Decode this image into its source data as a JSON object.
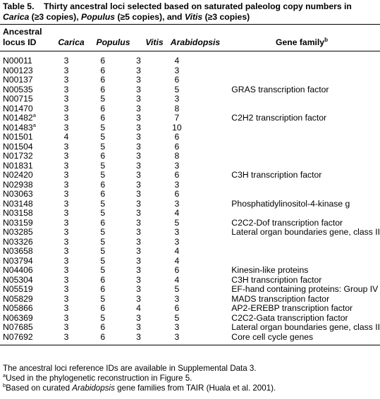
{
  "caption": {
    "table_number": "Table 5.",
    "title_part1": "Thirty ancestral loci selected based on saturated paleolog copy numbers in",
    "genus1": "Carica",
    "note1": "(≥3 copies),",
    "genus2": "Populus",
    "note2": "(≥5 copies), and",
    "genus3": "Vitis",
    "note3": "(≥3 copies)"
  },
  "headers": {
    "locus_line1": "Ancestral",
    "locus_line2": "locus ID",
    "carica": "Carica",
    "populus": "Populus",
    "vitis": "Vitis",
    "arabidopsis": "Arabidopsis",
    "gene_family": "Gene family",
    "gene_family_mark": "b"
  },
  "rows": [
    {
      "id": "N00011",
      "mark": "",
      "carica": "3",
      "populus": "6",
      "vitis": "3",
      "arabidopsis": "4",
      "family": ""
    },
    {
      "id": "N00123",
      "mark": "",
      "carica": "3",
      "populus": "6",
      "vitis": "3",
      "arabidopsis": "3",
      "family": ""
    },
    {
      "id": "N00137",
      "mark": "",
      "carica": "3",
      "populus": "6",
      "vitis": "3",
      "arabidopsis": "6",
      "family": ""
    },
    {
      "id": "N00535",
      "mark": "",
      "carica": "3",
      "populus": "6",
      "vitis": "3",
      "arabidopsis": "5",
      "family": "GRAS transcription factor"
    },
    {
      "id": "N00715",
      "mark": "",
      "carica": "3",
      "populus": "5",
      "vitis": "3",
      "arabidopsis": "3",
      "family": ""
    },
    {
      "id": "N01470",
      "mark": "",
      "carica": "3",
      "populus": "6",
      "vitis": "3",
      "arabidopsis": "8",
      "family": ""
    },
    {
      "id": "N01482",
      "mark": "a",
      "carica": "3",
      "populus": "6",
      "vitis": "3",
      "arabidopsis": "7",
      "family": "C2H2 transcription factor"
    },
    {
      "id": "N01483",
      "mark": "a",
      "carica": "3",
      "populus": "5",
      "vitis": "3",
      "arabidopsis": "10",
      "family": ""
    },
    {
      "id": "N01501",
      "mark": "",
      "carica": "4",
      "populus": "5",
      "vitis": "3",
      "arabidopsis": "6",
      "family": ""
    },
    {
      "id": "N01504",
      "mark": "",
      "carica": "3",
      "populus": "5",
      "vitis": "3",
      "arabidopsis": "6",
      "family": ""
    },
    {
      "id": "N01732",
      "mark": "",
      "carica": "3",
      "populus": "6",
      "vitis": "3",
      "arabidopsis": "8",
      "family": ""
    },
    {
      "id": "N01831",
      "mark": "",
      "carica": "3",
      "populus": "5",
      "vitis": "3",
      "arabidopsis": "3",
      "family": ""
    },
    {
      "id": "N02420",
      "mark": "",
      "carica": "3",
      "populus": "5",
      "vitis": "3",
      "arabidopsis": "6",
      "family": "C3H transcription factor"
    },
    {
      "id": "N02938",
      "mark": "",
      "carica": "3",
      "populus": "6",
      "vitis": "3",
      "arabidopsis": "3",
      "family": ""
    },
    {
      "id": "N03063",
      "mark": "",
      "carica": "3",
      "populus": "6",
      "vitis": "3",
      "arabidopsis": "6",
      "family": ""
    },
    {
      "id": "N03148",
      "mark": "",
      "carica": "3",
      "populus": "5",
      "vitis": "3",
      "arabidopsis": "3",
      "family": "Phosphatidylinositol-4-kinase g"
    },
    {
      "id": "N03158",
      "mark": "",
      "carica": "3",
      "populus": "5",
      "vitis": "3",
      "arabidopsis": "4",
      "family": ""
    },
    {
      "id": "N03159",
      "mark": "",
      "carica": "3",
      "populus": "6",
      "vitis": "3",
      "arabidopsis": "5",
      "family": "C2C2-Dof transcription factor"
    },
    {
      "id": "N03285",
      "mark": "",
      "carica": "3",
      "populus": "5",
      "vitis": "3",
      "arabidopsis": "3",
      "family": "Lateral organ boundaries gene, class II"
    },
    {
      "id": "N03326",
      "mark": "",
      "carica": "3",
      "populus": "5",
      "vitis": "3",
      "arabidopsis": "3",
      "family": ""
    },
    {
      "id": "N03658",
      "mark": "",
      "carica": "3",
      "populus": "5",
      "vitis": "3",
      "arabidopsis": "4",
      "family": ""
    },
    {
      "id": "N03794",
      "mark": "",
      "carica": "3",
      "populus": "5",
      "vitis": "3",
      "arabidopsis": "4",
      "family": ""
    },
    {
      "id": "N04406",
      "mark": "",
      "carica": "3",
      "populus": "5",
      "vitis": "3",
      "arabidopsis": "6",
      "family": "Kinesin-like proteins"
    },
    {
      "id": "N05304",
      "mark": "",
      "carica": "3",
      "populus": "6",
      "vitis": "3",
      "arabidopsis": "4",
      "family": "C3H transcription factor"
    },
    {
      "id": "N05519",
      "mark": "",
      "carica": "3",
      "populus": "6",
      "vitis": "3",
      "arabidopsis": "5",
      "family": "EF-hand containing proteins: Group IV"
    },
    {
      "id": "N05829",
      "mark": "",
      "carica": "3",
      "populus": "5",
      "vitis": "3",
      "arabidopsis": "3",
      "family": "MADS transcription factor"
    },
    {
      "id": "N05866",
      "mark": "",
      "carica": "3",
      "populus": "6",
      "vitis": "4",
      "arabidopsis": "6",
      "family": "AP2-EREBP transcription factor"
    },
    {
      "id": "N06369",
      "mark": "",
      "carica": "3",
      "populus": "5",
      "vitis": "3",
      "arabidopsis": "5",
      "family": "C2C2-Gata transcription factor"
    },
    {
      "id": "N07685",
      "mark": "",
      "carica": "3",
      "populus": "6",
      "vitis": "3",
      "arabidopsis": "3",
      "family": "Lateral organ boundaries gene, class II"
    },
    {
      "id": "N07692",
      "mark": "",
      "carica": "3",
      "populus": "6",
      "vitis": "3",
      "arabidopsis": "3",
      "family": "Core cell cycle genes"
    }
  ],
  "footnotes": {
    "general": "The ancestral loci reference IDs are available in Supplemental Data 3.",
    "a_mark": "a",
    "a_text": "Used in the phylogenetic reconstruction in Figure 5.",
    "b_mark": "b",
    "b_text_pre": "Based on curated",
    "b_genus": "Arabidopsis",
    "b_text_post": "gene families from TAIR (Huala et al. 2001)."
  }
}
